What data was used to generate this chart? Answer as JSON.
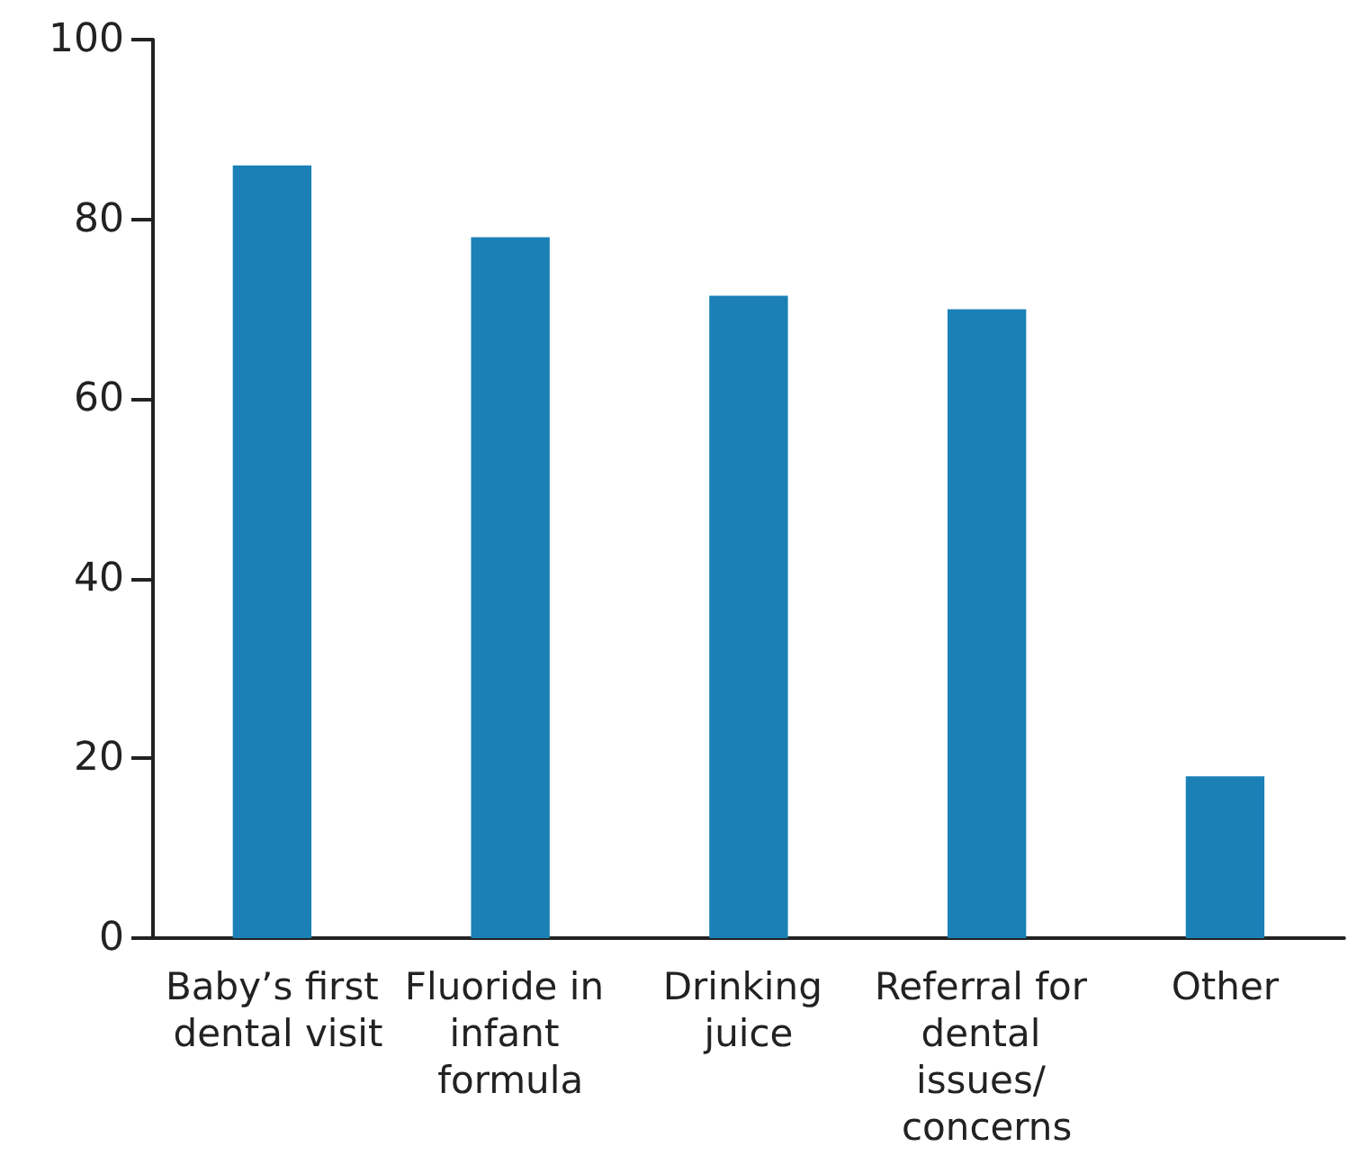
{
  "chart_data": {
    "type": "bar",
    "categories": [
      "Baby’s first dental visit",
      "Fluoride in infant formula",
      "Drinking juice",
      "Referral for dental issues/ concerns",
      "Other"
    ],
    "values": [
      86,
      78,
      71.5,
      70,
      18
    ],
    "color": "#1a80b6",
    "ylim": [
      0,
      100
    ],
    "yticks": [
      0,
      20,
      40,
      60,
      80,
      100
    ],
    "grid": false
  }
}
